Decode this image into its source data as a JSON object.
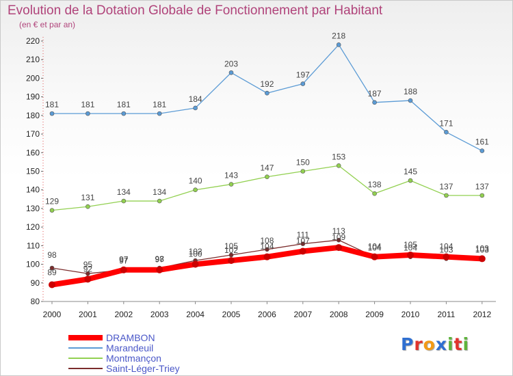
{
  "header": {
    "title": "Evolution de la Dotation Globale de Fonctionnement par Habitant",
    "subtitle": "(en € et par an)"
  },
  "logo": {
    "text": "Proxiti",
    "letters": [
      {
        "ch": "P",
        "color": "#2f6fd1"
      },
      {
        "ch": "r",
        "color": "#e0332d"
      },
      {
        "ch": "o",
        "color": "#f29a16"
      },
      {
        "ch": "x",
        "color": "#2f6fd1"
      },
      {
        "ch": "i",
        "color": "#5eb43c"
      },
      {
        "ch": "t",
        "color": "#e0332d"
      },
      {
        "ch": "i",
        "color": "#5eb43c"
      }
    ]
  },
  "chart_data": {
    "type": "line",
    "title": "Evolution de la Dotation Globale de Fonctionnement par Habitant",
    "subtitle": "(en € et par an)",
    "x": [
      2000,
      2001,
      2002,
      2003,
      2004,
      2005,
      2006,
      2007,
      2008,
      2009,
      2010,
      2011,
      2012
    ],
    "ylim": [
      80,
      220
    ],
    "yticks": [
      80,
      90,
      100,
      110,
      120,
      130,
      140,
      150,
      160,
      170,
      180,
      190,
      200,
      210,
      220
    ],
    "grid": false,
    "legend": "bottom-left",
    "series": [
      {
        "name": "Marandeuil",
        "color": "#5b9bd5",
        "width": 1.3,
        "values": [
          181,
          181,
          181,
          181,
          184,
          203,
          192,
          197,
          218,
          187,
          188,
          171,
          161
        ],
        "label_pos": "above"
      },
      {
        "name": "Montmançon",
        "color": "#92d050",
        "width": 1.3,
        "values": [
          129,
          131,
          134,
          134,
          140,
          143,
          147,
          150,
          153,
          138,
          145,
          137,
          137
        ],
        "label_pos": "above"
      },
      {
        "name": "Saint-Léger-Triey",
        "color": "#7b2c2c",
        "width": 1.3,
        "values": [
          98,
          95,
          97,
          98,
          102,
          105,
          108,
          111,
          113,
          104,
          104,
          103,
          103
        ],
        "label_pos": "above"
      },
      {
        "name": "DRAMBON",
        "color": "#ff0000",
        "width": 8,
        "values": [
          89,
          92,
          97,
          97,
          100,
          102,
          104,
          107,
          109,
          104,
          105,
          104,
          103
        ],
        "label_pos": "mixed"
      }
    ]
  },
  "legend": {
    "items": [
      {
        "name": "DRAMBON",
        "color": "#ff0000",
        "thick": true
      },
      {
        "name": "Marandeuil",
        "color": "#5b9bd5",
        "thick": false
      },
      {
        "name": "Montmançon",
        "color": "#92d050",
        "thick": false
      },
      {
        "name": "Saint-Léger-Triey",
        "color": "#7b2c2c",
        "thick": false
      }
    ]
  }
}
